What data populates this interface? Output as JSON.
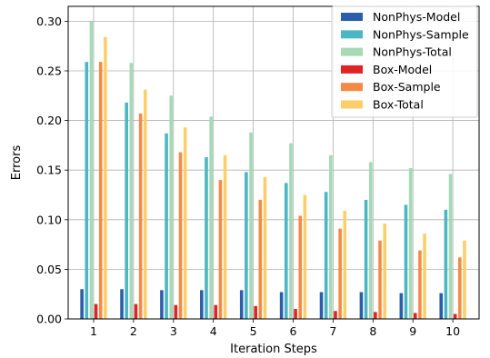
{
  "chart_data": {
    "type": "bar",
    "xlabel": "Iteration Steps",
    "ylabel": "Errors",
    "ylim": [
      0,
      0.315
    ],
    "yticks": [
      0.0,
      0.05,
      0.1,
      0.15,
      0.2,
      0.25,
      0.3
    ],
    "ytick_labels": [
      "0.00",
      "0.05",
      "0.10",
      "0.15",
      "0.20",
      "0.25",
      "0.30"
    ],
    "categories": [
      "1",
      "2",
      "3",
      "4",
      "5",
      "6",
      "7",
      "8",
      "9",
      "10"
    ],
    "grid": true,
    "legend_position": "top-right",
    "series": [
      {
        "name": "NonPhys-Model",
        "color": "#2a5ea8",
        "values": [
          0.03,
          0.03,
          0.029,
          0.029,
          0.029,
          0.027,
          0.027,
          0.027,
          0.026,
          0.026
        ]
      },
      {
        "name": "NonPhys-Sample",
        "color": "#4cb6c4",
        "values": [
          0.259,
          0.218,
          0.187,
          0.163,
          0.148,
          0.137,
          0.128,
          0.12,
          0.115,
          0.11
        ]
      },
      {
        "name": "NonPhys-Total",
        "color": "#a6d9b6",
        "values": [
          0.3,
          0.258,
          0.225,
          0.204,
          0.188,
          0.177,
          0.165,
          0.158,
          0.152,
          0.146
        ]
      },
      {
        "name": "Box-Model",
        "color": "#e02424",
        "values": [
          0.015,
          0.015,
          0.014,
          0.014,
          0.013,
          0.01,
          0.008,
          0.007,
          0.006,
          0.005
        ]
      },
      {
        "name": "Box-Sample",
        "color": "#f58a45",
        "values": [
          0.259,
          0.207,
          0.168,
          0.14,
          0.12,
          0.104,
          0.091,
          0.079,
          0.069,
          0.062
        ]
      },
      {
        "name": "Box-Total",
        "color": "#fece6a",
        "values": [
          0.284,
          0.231,
          0.193,
          0.165,
          0.143,
          0.125,
          0.109,
          0.096,
          0.086,
          0.079
        ]
      }
    ]
  }
}
